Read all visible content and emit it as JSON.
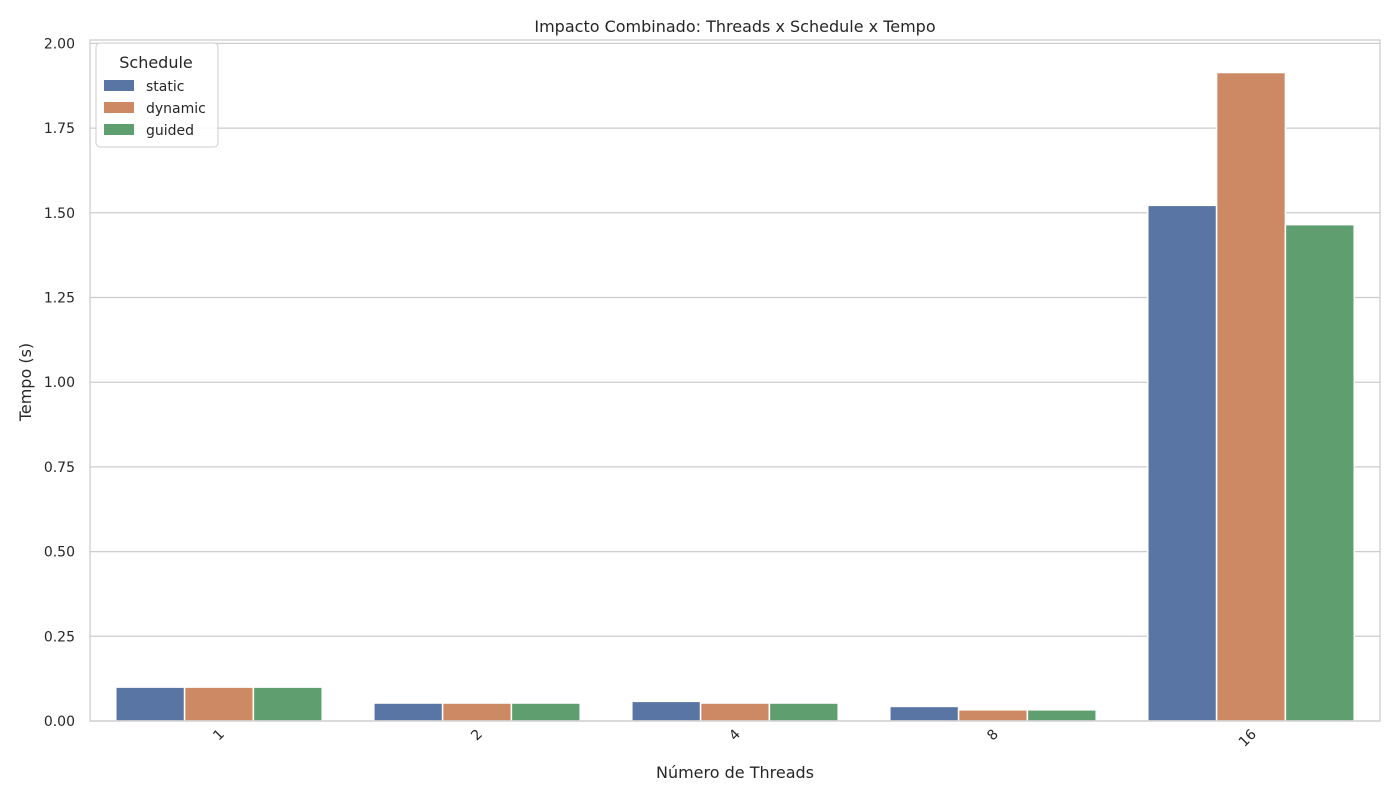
{
  "chart_data": {
    "type": "bar",
    "title": "Impacto Combinado: Threads x Schedule x Tempo",
    "xlabel": "Número de Threads",
    "ylabel": "Tempo (s)",
    "categories": [
      "1",
      "2",
      "4",
      "8",
      "16"
    ],
    "series": [
      {
        "name": "static",
        "color": "#5875a4",
        "values": [
          0.1,
          0.053,
          0.058,
          0.043,
          1.522
        ]
      },
      {
        "name": "dynamic",
        "color": "#cc8963",
        "values": [
          0.1,
          0.053,
          0.053,
          0.033,
          1.914
        ]
      },
      {
        "name": "guided",
        "color": "#5f9e6e",
        "values": [
          0.1,
          0.053,
          0.053,
          0.033,
          1.465
        ]
      }
    ],
    "ylim": [
      0,
      2.01
    ],
    "yticks": [
      "0.00",
      "0.25",
      "0.50",
      "0.75",
      "1.00",
      "1.25",
      "1.50",
      "1.75",
      "2.00"
    ],
    "grid": true,
    "legend": {
      "title": "Schedule",
      "placement": "top-left"
    }
  }
}
